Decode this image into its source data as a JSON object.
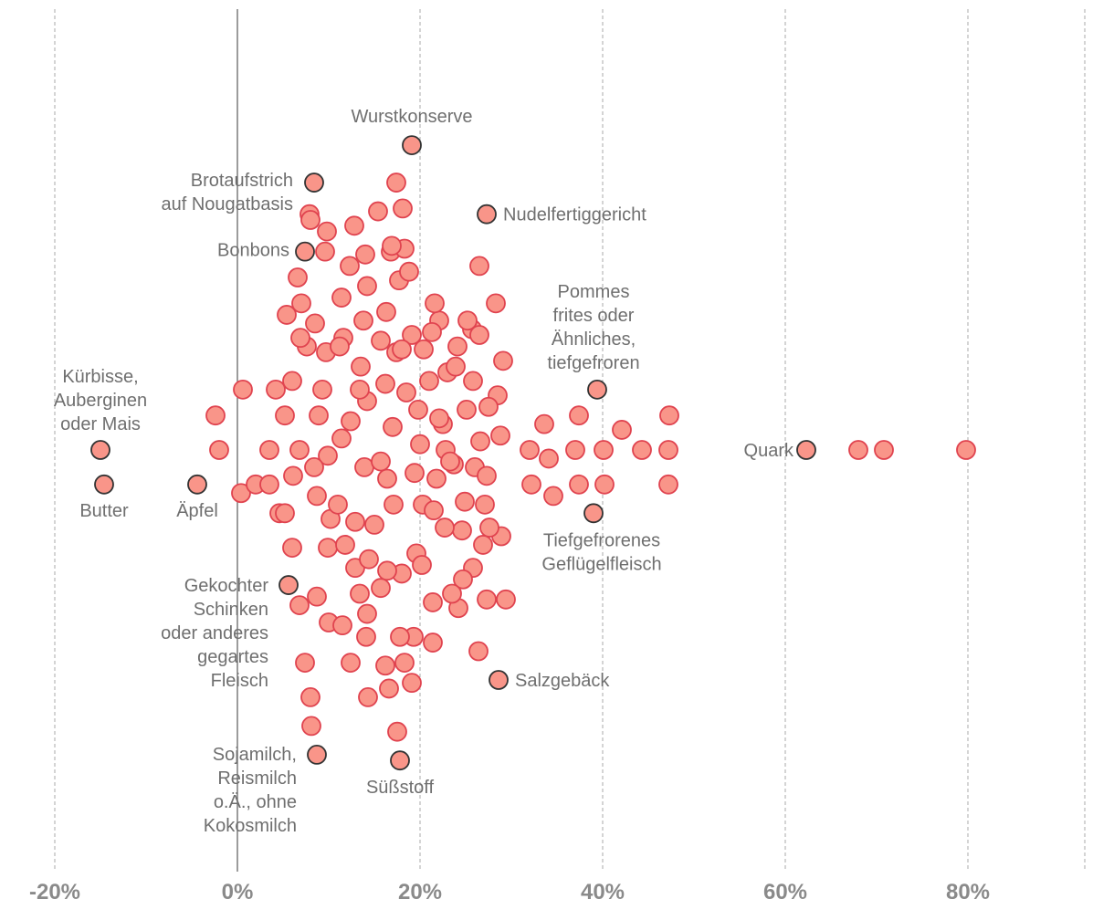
{
  "chart_data": {
    "type": "scatter",
    "title": "",
    "xlabel": "",
    "ylabel": "",
    "x_ticks": [
      -20,
      0,
      20,
      40,
      60,
      80
    ],
    "x_tick_labels": [
      "-20%",
      "0%",
      "20%",
      "40%",
      "60%",
      "80%"
    ],
    "xlim": [
      -24,
      93
    ],
    "grid": true,
    "colors": {
      "fill": "#f99589",
      "stroke": "#e0434f",
      "highlight_stroke": "#333333",
      "label": "#6f6f6f",
      "zero_line": "#666666"
    },
    "points": [
      {
        "x": -15.0,
        "y": 0,
        "label": "Kürbisse, Auberginen oder Mais"
      },
      {
        "x": -14.6,
        "y": -1.2,
        "label": "Butter"
      },
      {
        "x": -4.4,
        "y": -1.2,
        "label": "Äpfel"
      },
      {
        "x": 8.4,
        "y": 9.3,
        "label": "Brotaufstrich auf Nougatbasis"
      },
      {
        "x": 7.4,
        "y": 6.9,
        "label": "Bonbons"
      },
      {
        "x": 19.1,
        "y": 10.6,
        "label": "Wurstkonserve"
      },
      {
        "x": 27.3,
        "y": 8.2,
        "label": "Nudelfertiggericht"
      },
      {
        "x": 39.4,
        "y": 2.1,
        "label": "Pommes frites oder Ähnliches, tiefgefroren"
      },
      {
        "x": 62.3,
        "y": 0,
        "label": "Quark"
      },
      {
        "x": 39.0,
        "y": -2.2,
        "label": "Tiefgefrorenes Geflügelfleisch"
      },
      {
        "x": 5.6,
        "y": -4.7,
        "label": "Gekochter Schinken oder anderes gegartes Fleisch"
      },
      {
        "x": 28.6,
        "y": -8.0,
        "label": "Salzgebäck"
      },
      {
        "x": 8.7,
        "y": -10.6,
        "label": "Sojamilch, Reismilch o.Ä., ohne Kokosmilch"
      },
      {
        "x": 17.8,
        "y": -10.8,
        "label": "Süßstoff"
      },
      {
        "x": 68.0,
        "y": 0
      },
      {
        "x": 70.8,
        "y": 0
      },
      {
        "x": 79.8,
        "y": 0
      },
      {
        "x": -2.4,
        "y": 1.2
      },
      {
        "x": 0.6,
        "y": 2.1
      },
      {
        "x": -2.0,
        "y": 0
      },
      {
        "x": 0.4,
        "y": -1.5
      },
      {
        "x": 2.0,
        "y": -1.2
      },
      {
        "x": 3.5,
        "y": 0
      },
      {
        "x": 4.2,
        "y": 2.1
      },
      {
        "x": 5.4,
        "y": 4.7
      },
      {
        "x": 6.8,
        "y": 0
      },
      {
        "x": 5.2,
        "y": 1.2
      },
      {
        "x": 6.0,
        "y": -3.4
      },
      {
        "x": 4.6,
        "y": -2.2
      },
      {
        "x": 6.6,
        "y": 6.0
      },
      {
        "x": 7.9,
        "y": 8.2
      },
      {
        "x": 9.3,
        "y": 2.1
      },
      {
        "x": 9.6,
        "y": 6.9
      },
      {
        "x": 7.6,
        "y": 3.6
      },
      {
        "x": 6.0,
        "y": 2.4
      },
      {
        "x": 8.9,
        "y": 1.2
      },
      {
        "x": 9.9,
        "y": -0.2
      },
      {
        "x": 10.2,
        "y": -2.4
      },
      {
        "x": 8.7,
        "y": -1.6
      },
      {
        "x": 9.9,
        "y": -3.4
      },
      {
        "x": 11.4,
        "y": 0.4
      },
      {
        "x": 11.0,
        "y": -1.9
      },
      {
        "x": 12.4,
        "y": 1.0
      },
      {
        "x": 11.6,
        "y": 3.9
      },
      {
        "x": 13.5,
        "y": 2.9
      },
      {
        "x": 12.3,
        "y": 6.4
      },
      {
        "x": 13.8,
        "y": 4.5
      },
      {
        "x": 14.2,
        "y": 1.7
      },
      {
        "x": 13.9,
        "y": -0.6
      },
      {
        "x": 15.0,
        "y": -2.6
      },
      {
        "x": 12.9,
        "y": -4.1
      },
      {
        "x": 14.2,
        "y": -5.7
      },
      {
        "x": 15.7,
        "y": -4.8
      },
      {
        "x": 16.4,
        "y": -1.0
      },
      {
        "x": 17.0,
        "y": 0.8
      },
      {
        "x": 17.4,
        "y": 3.4
      },
      {
        "x": 17.7,
        "y": 5.9
      },
      {
        "x": 18.1,
        "y": 8.4
      },
      {
        "x": 18.8,
        "y": 6.2
      },
      {
        "x": 19.1,
        "y": 4.0
      },
      {
        "x": 19.8,
        "y": 1.4
      },
      {
        "x": 20.3,
        "y": -1.9
      },
      {
        "x": 19.6,
        "y": -3.6
      },
      {
        "x": 21.5,
        "y": -2.1
      },
      {
        "x": 22.5,
        "y": 0.9
      },
      {
        "x": 22.1,
        "y": 4.5
      },
      {
        "x": 23.0,
        "y": 2.7
      },
      {
        "x": 23.7,
        "y": -0.5
      },
      {
        "x": 24.6,
        "y": -2.8
      },
      {
        "x": 25.8,
        "y": -4.1
      },
      {
        "x": 25.1,
        "y": 1.4
      },
      {
        "x": 25.7,
        "y": 4.2
      },
      {
        "x": 26.5,
        "y": 6.4
      },
      {
        "x": 27.1,
        "y": -1.9
      },
      {
        "x": 27.3,
        "y": -5.2
      },
      {
        "x": 28.5,
        "y": 1.9
      },
      {
        "x": 29.1,
        "y": 3.1
      },
      {
        "x": 28.9,
        "y": -3.0
      },
      {
        "x": 26.4,
        "y": -7.0
      },
      {
        "x": 26.6,
        "y": 0.3
      },
      {
        "x": 32.0,
        "y": 0
      },
      {
        "x": 33.6,
        "y": 0.9
      },
      {
        "x": 34.1,
        "y": -0.3
      },
      {
        "x": 32.2,
        "y": -1.2
      },
      {
        "x": 34.6,
        "y": -1.6
      },
      {
        "x": 37.0,
        "y": 0
      },
      {
        "x": 37.4,
        "y": 1.2
      },
      {
        "x": 37.4,
        "y": -1.2
      },
      {
        "x": 40.1,
        "y": 0
      },
      {
        "x": 40.2,
        "y": -1.2
      },
      {
        "x": 42.1,
        "y": 0.7
      },
      {
        "x": 44.3,
        "y": 0
      },
      {
        "x": 47.2,
        "y": 0
      },
      {
        "x": 47.3,
        "y": 1.2
      },
      {
        "x": 47.2,
        "y": -1.2
      },
      {
        "x": 8.0,
        "y": 8.0
      },
      {
        "x": 9.8,
        "y": 7.6
      },
      {
        "x": 12.8,
        "y": 7.8
      },
      {
        "x": 15.4,
        "y": 8.3
      },
      {
        "x": 16.8,
        "y": 6.9
      },
      {
        "x": 18.3,
        "y": 7.0
      },
      {
        "x": 17.4,
        "y": 9.3
      },
      {
        "x": 7.0,
        "y": 5.1
      },
      {
        "x": 6.9,
        "y": 3.9
      },
      {
        "x": 8.5,
        "y": 4.4
      },
      {
        "x": 9.7,
        "y": 3.4
      },
      {
        "x": 11.2,
        "y": 3.6
      },
      {
        "x": 11.4,
        "y": 5.3
      },
      {
        "x": 14.2,
        "y": 5.7
      },
      {
        "x": 15.7,
        "y": 3.8
      },
      {
        "x": 16.3,
        "y": 4.8
      },
      {
        "x": 18.0,
        "y": 3.5
      },
      {
        "x": 20.4,
        "y": 3.5
      },
      {
        "x": 21.3,
        "y": 4.1
      },
      {
        "x": 21.0,
        "y": 2.4
      },
      {
        "x": 23.9,
        "y": 2.9
      },
      {
        "x": 25.2,
        "y": 4.5
      },
      {
        "x": 25.8,
        "y": 2.4
      },
      {
        "x": 27.5,
        "y": 1.5
      },
      {
        "x": 28.3,
        "y": 5.1
      },
      {
        "x": 26.5,
        "y": 4.0
      },
      {
        "x": 24.1,
        "y": 3.6
      },
      {
        "x": 21.6,
        "y": 5.1
      },
      {
        "x": 14.0,
        "y": 6.8
      },
      {
        "x": 16.9,
        "y": 7.1
      },
      {
        "x": 6.1,
        "y": -0.9
      },
      {
        "x": 5.2,
        "y": -2.2
      },
      {
        "x": 3.5,
        "y": -1.2
      },
      {
        "x": 8.4,
        "y": -0.6
      },
      {
        "x": 13.4,
        "y": 2.1
      },
      {
        "x": 16.2,
        "y": 2.3
      },
      {
        "x": 20.0,
        "y": 0.2
      },
      {
        "x": 22.8,
        "y": 0
      },
      {
        "x": 24.9,
        "y": -1.8
      },
      {
        "x": 27.6,
        "y": -2.7
      },
      {
        "x": 26.9,
        "y": -3.3
      },
      {
        "x": 24.7,
        "y": -4.5
      },
      {
        "x": 22.7,
        "y": -2.7
      },
      {
        "x": 20.2,
        "y": -4.0
      },
      {
        "x": 18.0,
        "y": -4.3
      },
      {
        "x": 16.4,
        "y": -4.2
      },
      {
        "x": 12.9,
        "y": -2.5
      },
      {
        "x": 11.8,
        "y": -3.3
      },
      {
        "x": 8.7,
        "y": -5.1
      },
      {
        "x": 10.0,
        "y": -6.0
      },
      {
        "x": 6.8,
        "y": -5.4
      },
      {
        "x": 7.4,
        "y": -7.4
      },
      {
        "x": 11.5,
        "y": -6.1
      },
      {
        "x": 12.4,
        "y": -7.4
      },
      {
        "x": 14.1,
        "y": -6.5
      },
      {
        "x": 16.2,
        "y": -7.5
      },
      {
        "x": 18.3,
        "y": -7.4
      },
      {
        "x": 19.3,
        "y": -6.5
      },
      {
        "x": 21.4,
        "y": -5.3
      },
      {
        "x": 24.2,
        "y": -5.5
      },
      {
        "x": 14.3,
        "y": -8.6
      },
      {
        "x": 16.6,
        "y": -8.3
      },
      {
        "x": 19.1,
        "y": -8.1
      },
      {
        "x": 21.4,
        "y": -6.7
      },
      {
        "x": 23.5,
        "y": -5.0
      },
      {
        "x": 8.0,
        "y": -8.6
      },
      {
        "x": 8.1,
        "y": -9.6
      },
      {
        "x": 17.5,
        "y": -9.8
      },
      {
        "x": 29.4,
        "y": -5.2
      },
      {
        "x": 14.4,
        "y": -3.8
      },
      {
        "x": 17.8,
        "y": -6.5
      },
      {
        "x": 13.4,
        "y": -5.0
      },
      {
        "x": 17.1,
        "y": -1.9
      },
      {
        "x": 15.7,
        "y": -0.4
      },
      {
        "x": 19.4,
        "y": -0.8
      },
      {
        "x": 21.8,
        "y": -1.0
      },
      {
        "x": 18.5,
        "y": 2.0
      },
      {
        "x": 22.1,
        "y": 1.1
      },
      {
        "x": 23.3,
        "y": -0.4
      },
      {
        "x": 26.0,
        "y": -0.6
      },
      {
        "x": 28.8,
        "y": 0.5
      },
      {
        "x": 27.3,
        "y": -0.9
      }
    ]
  }
}
